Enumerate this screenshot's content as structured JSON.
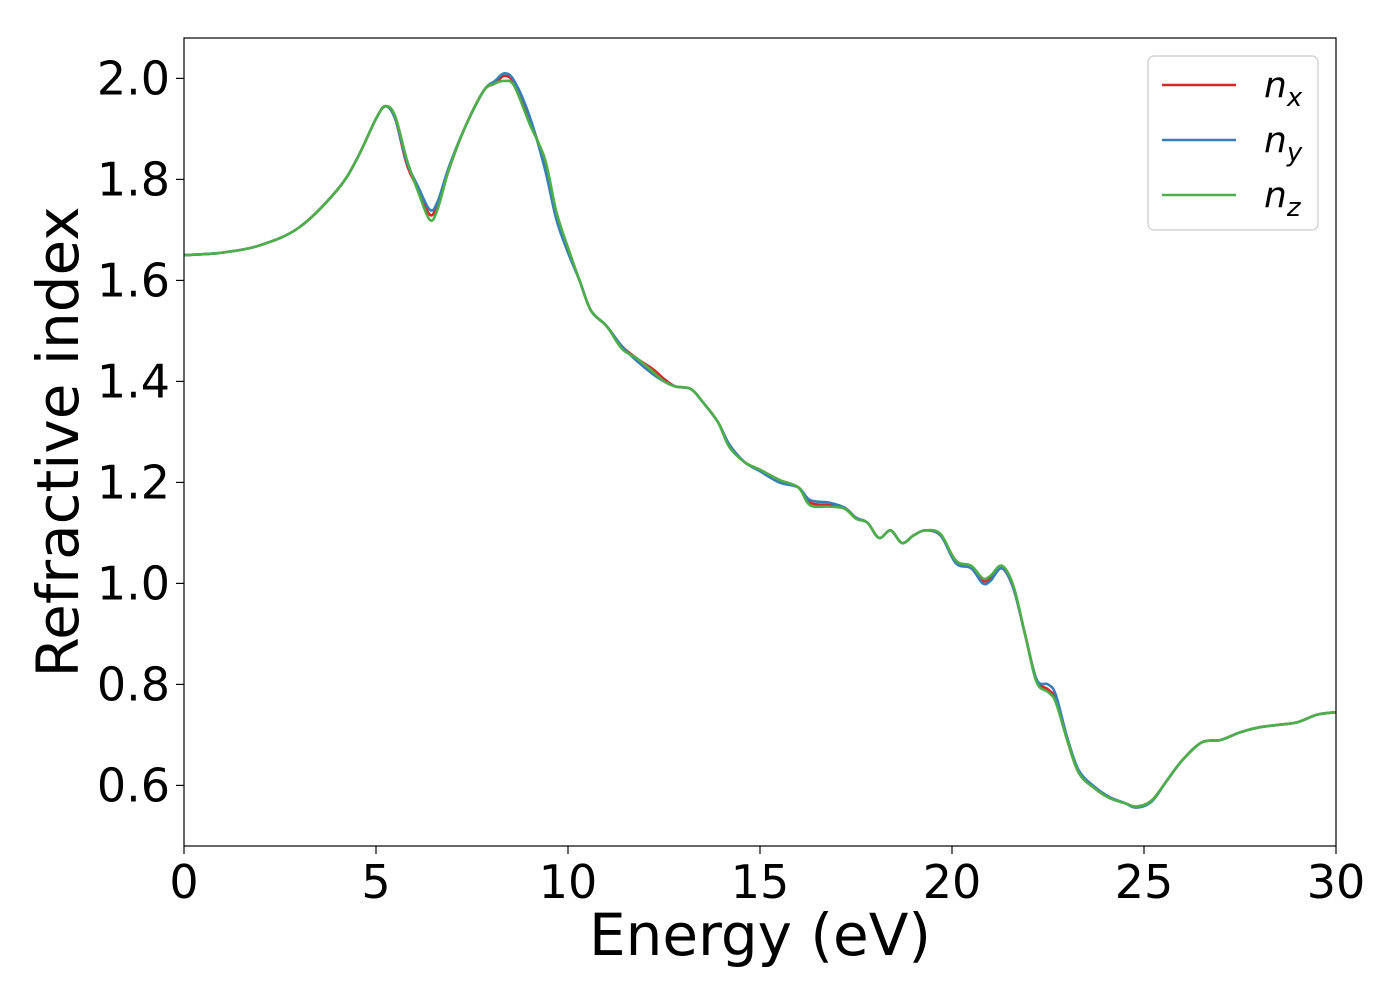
{
  "chart_data": {
    "type": "line",
    "title": "",
    "xlabel": "Energy (eV)",
    "ylabel": "Refractive index",
    "xlim": [
      0,
      30
    ],
    "ylim": [
      0.48,
      2.08
    ],
    "xticks": [
      0,
      5,
      10,
      15,
      20,
      25,
      30
    ],
    "yticks": [
      0.6,
      0.8,
      1.0,
      1.2,
      1.4,
      1.6,
      1.8,
      2.0
    ],
    "xtick_labels": [
      "0",
      "5",
      "10",
      "15",
      "20",
      "25",
      "30"
    ],
    "ytick_labels": [
      "0.6",
      "0.8",
      "1.0",
      "1.2",
      "1.4",
      "1.6",
      "1.8",
      "2.0"
    ],
    "grid": false,
    "legend": {
      "position": "top-right"
    },
    "series": [
      {
        "name": "n",
        "subscript": "x",
        "color": "#d62728",
        "points": [
          [
            0,
            1.65
          ],
          [
            1,
            1.655
          ],
          [
            2,
            1.67
          ],
          [
            3,
            1.705
          ],
          [
            4,
            1.78
          ],
          [
            4.5,
            1.84
          ],
          [
            5,
            1.92
          ],
          [
            5.25,
            1.945
          ],
          [
            5.5,
            1.92
          ],
          [
            5.8,
            1.83
          ],
          [
            6.1,
            1.78
          ],
          [
            6.4,
            1.73
          ],
          [
            6.6,
            1.75
          ],
          [
            6.9,
            1.82
          ],
          [
            7.3,
            1.9
          ],
          [
            7.8,
            1.975
          ],
          [
            8.1,
            1.99
          ],
          [
            8.35,
            2.005
          ],
          [
            8.6,
            1.99
          ],
          [
            9,
            1.92
          ],
          [
            9.4,
            1.83
          ],
          [
            9.7,
            1.73
          ],
          [
            10,
            1.66
          ],
          [
            10.3,
            1.6
          ],
          [
            10.6,
            1.54
          ],
          [
            11,
            1.51
          ],
          [
            11.4,
            1.47
          ],
          [
            11.8,
            1.445
          ],
          [
            12.2,
            1.425
          ],
          [
            12.5,
            1.405
          ],
          [
            12.8,
            1.39
          ],
          [
            13.2,
            1.385
          ],
          [
            13.5,
            1.36
          ],
          [
            13.9,
            1.32
          ],
          [
            14.2,
            1.275
          ],
          [
            14.6,
            1.24
          ],
          [
            15,
            1.225
          ],
          [
            15.5,
            1.205
          ],
          [
            16,
            1.19
          ],
          [
            16.3,
            1.16
          ],
          [
            16.8,
            1.155
          ],
          [
            17.2,
            1.15
          ],
          [
            17.5,
            1.13
          ],
          [
            17.8,
            1.12
          ],
          [
            18.1,
            1.09
          ],
          [
            18.4,
            1.105
          ],
          [
            18.7,
            1.08
          ],
          [
            19,
            1.095
          ],
          [
            19.3,
            1.105
          ],
          [
            19.7,
            1.095
          ],
          [
            20.1,
            1.045
          ],
          [
            20.5,
            1.03
          ],
          [
            20.8,
            1.005
          ],
          [
            21.0,
            1.01
          ],
          [
            21.3,
            1.03
          ],
          [
            21.6,
            0.99
          ],
          [
            21.9,
            0.9
          ],
          [
            22.2,
            0.81
          ],
          [
            22.5,
            0.79
          ],
          [
            22.7,
            0.77
          ],
          [
            23,
            0.69
          ],
          [
            23.3,
            0.625
          ],
          [
            23.7,
            0.595
          ],
          [
            24.1,
            0.575
          ],
          [
            24.5,
            0.565
          ],
          [
            24.8,
            0.558
          ],
          [
            25.2,
            0.57
          ],
          [
            25.6,
            0.61
          ],
          [
            26,
            0.65
          ],
          [
            26.5,
            0.685
          ],
          [
            27,
            0.69
          ],
          [
            27.5,
            0.705
          ],
          [
            28,
            0.715
          ],
          [
            28.5,
            0.72
          ],
          [
            29,
            0.725
          ],
          [
            29.5,
            0.74
          ],
          [
            30,
            0.745
          ]
        ]
      },
      {
        "name": "n",
        "subscript": "y",
        "color": "#377eb8",
        "points": [
          [
            0,
            1.65
          ],
          [
            1,
            1.655
          ],
          [
            2,
            1.67
          ],
          [
            3,
            1.705
          ],
          [
            4,
            1.78
          ],
          [
            4.5,
            1.84
          ],
          [
            5,
            1.92
          ],
          [
            5.25,
            1.945
          ],
          [
            5.5,
            1.92
          ],
          [
            5.8,
            1.835
          ],
          [
            6.1,
            1.785
          ],
          [
            6.4,
            1.74
          ],
          [
            6.6,
            1.755
          ],
          [
            6.9,
            1.825
          ],
          [
            7.3,
            1.9
          ],
          [
            7.8,
            1.975
          ],
          [
            8.1,
            1.995
          ],
          [
            8.35,
            2.01
          ],
          [
            8.6,
            1.995
          ],
          [
            9,
            1.925
          ],
          [
            9.4,
            1.82
          ],
          [
            9.7,
            1.72
          ],
          [
            10,
            1.655
          ],
          [
            10.3,
            1.6
          ],
          [
            10.6,
            1.54
          ],
          [
            11,
            1.51
          ],
          [
            11.4,
            1.47
          ],
          [
            11.8,
            1.44
          ],
          [
            12.2,
            1.415
          ],
          [
            12.5,
            1.4
          ],
          [
            12.8,
            1.39
          ],
          [
            13.2,
            1.385
          ],
          [
            13.5,
            1.36
          ],
          [
            13.9,
            1.32
          ],
          [
            14.2,
            1.275
          ],
          [
            14.6,
            1.24
          ],
          [
            15,
            1.222
          ],
          [
            15.5,
            1.2
          ],
          [
            16,
            1.19
          ],
          [
            16.3,
            1.165
          ],
          [
            16.8,
            1.16
          ],
          [
            17.2,
            1.15
          ],
          [
            17.5,
            1.13
          ],
          [
            17.8,
            1.12
          ],
          [
            18.1,
            1.09
          ],
          [
            18.4,
            1.105
          ],
          [
            18.7,
            1.08
          ],
          [
            19,
            1.095
          ],
          [
            19.3,
            1.105
          ],
          [
            19.7,
            1.095
          ],
          [
            20.1,
            1.04
          ],
          [
            20.5,
            1.03
          ],
          [
            20.8,
            1.0
          ],
          [
            21.0,
            1.005
          ],
          [
            21.3,
            1.03
          ],
          [
            21.6,
            0.99
          ],
          [
            21.9,
            0.9
          ],
          [
            22.2,
            0.81
          ],
          [
            22.5,
            0.8
          ],
          [
            22.7,
            0.78
          ],
          [
            23,
            0.695
          ],
          [
            23.3,
            0.63
          ],
          [
            23.7,
            0.598
          ],
          [
            24.1,
            0.577
          ],
          [
            24.5,
            0.565
          ],
          [
            24.8,
            0.556
          ],
          [
            25.2,
            0.568
          ],
          [
            25.6,
            0.61
          ],
          [
            26,
            0.65
          ],
          [
            26.5,
            0.685
          ],
          [
            27,
            0.69
          ],
          [
            27.5,
            0.705
          ],
          [
            28,
            0.715
          ],
          [
            28.5,
            0.72
          ],
          [
            29,
            0.725
          ],
          [
            29.5,
            0.74
          ],
          [
            30,
            0.745
          ]
        ]
      },
      {
        "name": "n",
        "subscript": "z",
        "color": "#4daf4a",
        "points": [
          [
            0,
            1.65
          ],
          [
            1,
            1.655
          ],
          [
            2,
            1.67
          ],
          [
            3,
            1.705
          ],
          [
            4,
            1.78
          ],
          [
            4.5,
            1.84
          ],
          [
            5,
            1.92
          ],
          [
            5.25,
            1.945
          ],
          [
            5.5,
            1.925
          ],
          [
            5.8,
            1.84
          ],
          [
            6.1,
            1.775
          ],
          [
            6.4,
            1.72
          ],
          [
            6.6,
            1.74
          ],
          [
            6.9,
            1.82
          ],
          [
            7.3,
            1.9
          ],
          [
            7.8,
            1.975
          ],
          [
            8.1,
            1.99
          ],
          [
            8.35,
            1.995
          ],
          [
            8.6,
            1.985
          ],
          [
            9,
            1.91
          ],
          [
            9.4,
            1.84
          ],
          [
            9.7,
            1.735
          ],
          [
            10,
            1.665
          ],
          [
            10.3,
            1.6
          ],
          [
            10.6,
            1.54
          ],
          [
            11,
            1.51
          ],
          [
            11.4,
            1.465
          ],
          [
            11.8,
            1.445
          ],
          [
            12.2,
            1.42
          ],
          [
            12.5,
            1.4
          ],
          [
            12.8,
            1.39
          ],
          [
            13.2,
            1.385
          ],
          [
            13.5,
            1.36
          ],
          [
            13.9,
            1.32
          ],
          [
            14.2,
            1.27
          ],
          [
            14.6,
            1.24
          ],
          [
            15,
            1.225
          ],
          [
            15.5,
            1.205
          ],
          [
            16,
            1.19
          ],
          [
            16.3,
            1.155
          ],
          [
            16.8,
            1.152
          ],
          [
            17.2,
            1.148
          ],
          [
            17.5,
            1.128
          ],
          [
            17.8,
            1.12
          ],
          [
            18.1,
            1.09
          ],
          [
            18.4,
            1.105
          ],
          [
            18.7,
            1.08
          ],
          [
            19,
            1.095
          ],
          [
            19.3,
            1.105
          ],
          [
            19.7,
            1.098
          ],
          [
            20.1,
            1.045
          ],
          [
            20.5,
            1.035
          ],
          [
            20.8,
            1.01
          ],
          [
            21.0,
            1.015
          ],
          [
            21.3,
            1.035
          ],
          [
            21.6,
            0.995
          ],
          [
            21.9,
            0.9
          ],
          [
            22.2,
            0.805
          ],
          [
            22.5,
            0.785
          ],
          [
            22.7,
            0.765
          ],
          [
            23,
            0.69
          ],
          [
            23.3,
            0.625
          ],
          [
            23.7,
            0.595
          ],
          [
            24.1,
            0.575
          ],
          [
            24.5,
            0.565
          ],
          [
            24.8,
            0.558
          ],
          [
            25.2,
            0.57
          ],
          [
            25.6,
            0.61
          ],
          [
            26,
            0.65
          ],
          [
            26.5,
            0.685
          ],
          [
            27,
            0.69
          ],
          [
            27.5,
            0.705
          ],
          [
            28,
            0.715
          ],
          [
            28.5,
            0.72
          ],
          [
            29,
            0.725
          ],
          [
            29.5,
            0.74
          ],
          [
            30,
            0.745
          ]
        ]
      }
    ]
  }
}
